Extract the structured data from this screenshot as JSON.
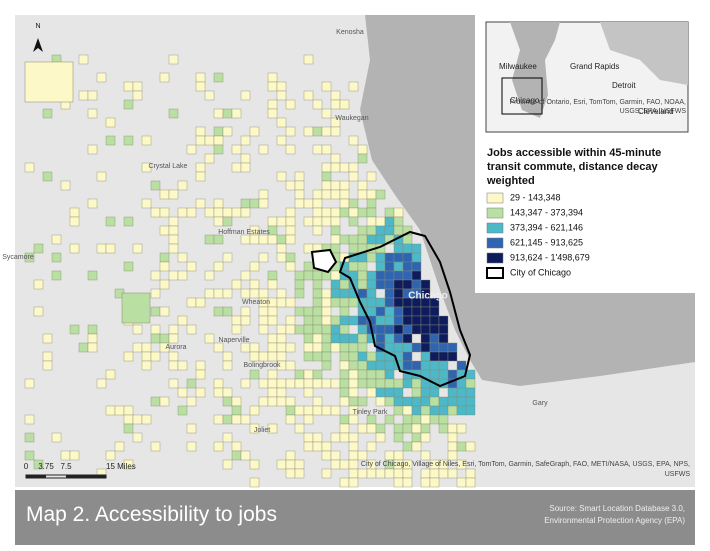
{
  "map": {
    "north": "N",
    "legend": {
      "title": "Jobs accessible within 45-minute transit commute, distance decay weighted",
      "items": [
        {
          "label": "29 - 143,348",
          "color": "#fcf8c8"
        },
        {
          "label": "143,347 - 373,394",
          "color": "#b9e0a2"
        },
        {
          "label": "373,394 - 621,146",
          "color": "#4cb8c8"
        },
        {
          "label": "621,145 - 913,625",
          "color": "#2f64b0"
        },
        {
          "label": "913,624 - 1'498,679",
          "color": "#0e1c5e"
        },
        {
          "label": "City of Chicago",
          "color": "#ffffff"
        }
      ]
    },
    "places": [
      "Kenosha",
      "Waukegan",
      "Crystal Lake",
      "Hoffman Estates",
      "Sycamore",
      "Wheaton",
      "Naperville",
      "Aurora",
      "Bolingbrook",
      "Joliet",
      "Tinley Park",
      "Gary",
      "Chicago"
    ],
    "scale": {
      "labels": [
        "0",
        "3.75",
        "7.5",
        "15 Miles"
      ]
    },
    "inset": {
      "labels": [
        "Milwaukee",
        "Grand Rapids",
        "Detroit",
        "Chicago",
        "Cleveland"
      ],
      "attribution": "Province of Ontario, Esri, TomTom, Garmin, FAO, NOAA, USGS, EPA, USFWS"
    },
    "attribution": "City of Chicago, Village of Niles, Esri, TomTom, Garmin, SafeGraph, FAO, METI/NASA, USGS, EPA, NPS, USFWS",
    "caption": {
      "title": "Map 2. Accessibility to jobs",
      "source": "Source: Smart Location Database 3.0, Environmental Protection Agency (EPA)"
    }
  }
}
